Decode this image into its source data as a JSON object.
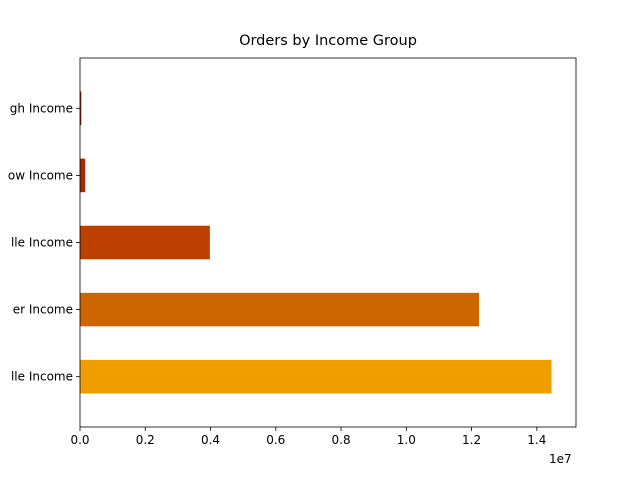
{
  "chart_data": {
    "type": "bar",
    "orientation": "horizontal",
    "title": "Orders by Income Group",
    "xlabel": "",
    "ylabel": "",
    "categories": [
      "Middle Income",
      "Upper Income",
      "Middle Income",
      "Low Income",
      "High Income"
    ],
    "category_labels": [
      "lle Income",
      "er Income",
      "lle Income",
      "ow Income",
      "gh Income"
    ],
    "values": [
      14450000,
      12230000,
      3980000,
      160000,
      40000
    ],
    "colors": [
      "#f09d00",
      "#cd6600",
      "#bc4000",
      "#a52a0a",
      "#8b1a0a"
    ],
    "xlim": [
      0,
      15200000
    ],
    "x_ticks": [
      0,
      2000000,
      4000000,
      6000000,
      8000000,
      10000000,
      12000000,
      14000000
    ],
    "x_tick_labels": [
      "0.0",
      "0.2",
      "0.4",
      "0.6",
      "0.8",
      "1.0",
      "1.2",
      "1.4"
    ],
    "x_offset_label": "1e7",
    "grid": false,
    "legend": "none"
  }
}
